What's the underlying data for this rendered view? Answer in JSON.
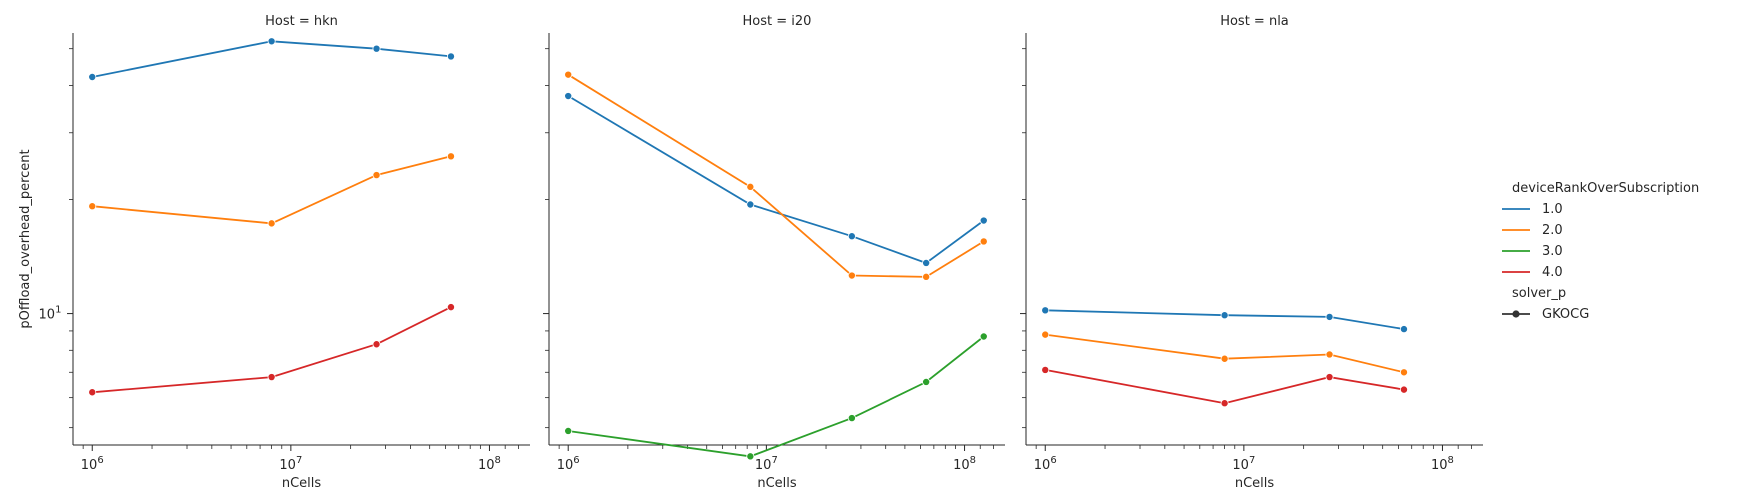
{
  "chart_data": {
    "type": "line",
    "ylabel": "pOffload_overhead_percent",
    "y_scale": "log",
    "ylim": [
      4.5,
      55
    ],
    "y_tick_label": "10^1",
    "x_scale": "log",
    "xlim": [
      800000,
      160000000
    ],
    "x_tick_labels": [
      "10^6",
      "10^7",
      "10^8"
    ],
    "legend": {
      "placement": "right",
      "hue_title": "deviceRankOverSubscription",
      "style_title": "solver_p",
      "style_entries": [
        "GKOCG"
      ]
    },
    "colors": {
      "1.0": "#1f77b4",
      "2.0": "#ff7f0e",
      "3.0": "#2ca02c",
      "4.0": "#d62728"
    },
    "panels": [
      {
        "title": "Host = hkn",
        "xlabel": "nCells",
        "series": [
          {
            "name": "1.0",
            "x": [
              1000000,
              8000000,
              27000000,
              64000000
            ],
            "y": [
              42.1,
              52.3,
              50.0,
              47.7
            ]
          },
          {
            "name": "2.0",
            "x": [
              1000000,
              8000000,
              27000000,
              64000000
            ],
            "y": [
              19.2,
              17.3,
              23.2,
              26.0
            ]
          },
          {
            "name": "4.0",
            "x": [
              1000000,
              8000000,
              27000000,
              64000000
            ],
            "y": [
              6.2,
              6.8,
              8.3,
              10.4
            ]
          }
        ]
      },
      {
        "title": "Host = i20",
        "xlabel": "nCells",
        "series": [
          {
            "name": "1.0",
            "x": [
              1000000,
              8300000,
              27000000,
              64000000,
              125000000
            ],
            "y": [
              37.5,
              19.4,
              16.0,
              13.6,
              17.6
            ]
          },
          {
            "name": "2.0",
            "x": [
              1000000,
              8300000,
              27000000,
              64000000,
              125000000
            ],
            "y": [
              42.7,
              21.6,
              12.6,
              12.5,
              15.5
            ]
          },
          {
            "name": "3.0",
            "x": [
              1000000,
              8300000,
              27000000,
              64000000,
              125000000
            ],
            "y": [
              4.9,
              4.2,
              5.3,
              6.6,
              8.7
            ]
          }
        ]
      },
      {
        "title": "Host = nla",
        "xlabel": "nCells",
        "series": [
          {
            "name": "1.0",
            "x": [
              1000000,
              8000000,
              27000000,
              64000000
            ],
            "y": [
              10.2,
              9.9,
              9.8,
              9.1
            ]
          },
          {
            "name": "2.0",
            "x": [
              1000000,
              8000000,
              27000000,
              64000000
            ],
            "y": [
              8.8,
              7.6,
              7.8,
              7.0
            ]
          },
          {
            "name": "4.0",
            "x": [
              1000000,
              8000000,
              27000000,
              64000000
            ],
            "y": [
              7.1,
              5.8,
              6.8,
              6.3
            ]
          }
        ]
      }
    ]
  }
}
